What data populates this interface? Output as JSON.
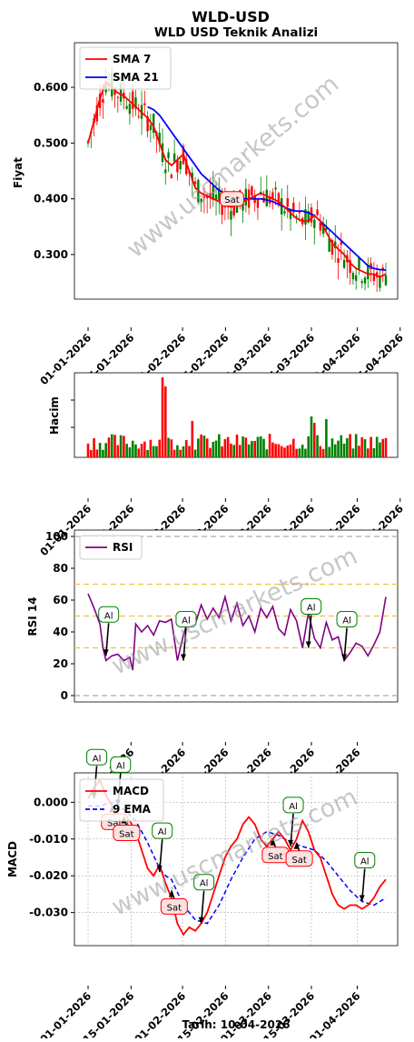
{
  "header": {
    "title": "WLD-USD",
    "subtitle": "WLD USD Teknik Analizi"
  },
  "footer": {
    "date_label": "Tarih: 10-04-2026"
  },
  "watermark": "www.uscmarkets.com",
  "colors": {
    "up": "#008000",
    "down": "#ff0000",
    "sma7": "#ff0000",
    "sma21": "#0000ff",
    "rsi": "#800080",
    "macd": "#ff0000",
    "signal": "#0000ff",
    "buy": "#008000",
    "sell": "#ff0000"
  },
  "x_dates": [
    "01-01-2026",
    "15-01-2026",
    "01-02-2026",
    "15-02-2026",
    "01-03-2026",
    "15-03-2026",
    "01-04-2026",
    "15-04-2026"
  ],
  "chart_data": [
    {
      "type": "line",
      "panel": "price",
      "ylabel": "Fiyat",
      "ylim": [
        0.22,
        0.68
      ],
      "yticks": [
        "0.300",
        "0.400",
        "0.500",
        "0.600"
      ],
      "ytick_values": [
        0.3,
        0.4,
        0.5,
        0.6
      ],
      "legend_position": "top-left",
      "series": [
        {
          "name": "SMA 7",
          "points": [
            [
              0,
              0.5
            ],
            [
              2,
              0.54
            ],
            [
              4,
              0.58
            ],
            [
              6,
              0.61
            ],
            [
              8,
              0.6
            ],
            [
              10,
              0.59
            ],
            [
              12,
              0.585
            ],
            [
              14,
              0.575
            ],
            [
              16,
              0.565
            ],
            [
              18,
              0.555
            ],
            [
              20,
              0.545
            ],
            [
              22,
              0.53
            ],
            [
              24,
              0.5
            ],
            [
              26,
              0.47
            ],
            [
              28,
              0.46
            ],
            [
              30,
              0.47
            ],
            [
              32,
              0.48
            ],
            [
              34,
              0.45
            ],
            [
              36,
              0.42
            ],
            [
              38,
              0.41
            ],
            [
              40,
              0.405
            ],
            [
              42,
              0.4
            ],
            [
              44,
              0.395
            ],
            [
              46,
              0.39
            ],
            [
              48,
              0.385
            ],
            [
              50,
              0.39
            ],
            [
              52,
              0.395
            ],
            [
              54,
              0.4
            ],
            [
              56,
              0.405
            ],
            [
              58,
              0.41
            ],
            [
              60,
              0.405
            ],
            [
              62,
              0.4
            ],
            [
              64,
              0.395
            ],
            [
              66,
              0.385
            ],
            [
              68,
              0.375
            ],
            [
              70,
              0.365
            ],
            [
              72,
              0.36
            ],
            [
              74,
              0.36
            ],
            [
              76,
              0.37
            ],
            [
              78,
              0.36
            ],
            [
              80,
              0.34
            ],
            [
              82,
              0.32
            ],
            [
              84,
              0.31
            ],
            [
              86,
              0.3
            ],
            [
              88,
              0.285
            ],
            [
              90,
              0.275
            ],
            [
              92,
              0.27
            ],
            [
              94,
              0.265
            ],
            [
              96,
              0.265
            ],
            [
              98,
              0.26
            ],
            [
              100,
              0.265
            ]
          ]
        },
        {
          "name": "SMA 21",
          "points": [
            [
              20,
              0.565
            ],
            [
              22,
              0.56
            ],
            [
              24,
              0.55
            ],
            [
              26,
              0.535
            ],
            [
              28,
              0.52
            ],
            [
              30,
              0.505
            ],
            [
              32,
              0.49
            ],
            [
              34,
              0.475
            ],
            [
              36,
              0.46
            ],
            [
              38,
              0.445
            ],
            [
              40,
              0.435
            ],
            [
              42,
              0.425
            ],
            [
              44,
              0.415
            ],
            [
              46,
              0.41
            ],
            [
              48,
              0.405
            ],
            [
              50,
              0.4
            ],
            [
              52,
              0.4
            ],
            [
              54,
              0.4
            ],
            [
              56,
              0.4
            ],
            [
              58,
              0.4
            ],
            [
              60,
              0.398
            ],
            [
              62,
              0.395
            ],
            [
              64,
              0.39
            ],
            [
              66,
              0.385
            ],
            [
              68,
              0.38
            ],
            [
              70,
              0.378
            ],
            [
              72,
              0.378
            ],
            [
              74,
              0.375
            ],
            [
              76,
              0.37
            ],
            [
              78,
              0.36
            ],
            [
              80,
              0.35
            ],
            [
              82,
              0.34
            ],
            [
              84,
              0.33
            ],
            [
              86,
              0.32
            ],
            [
              88,
              0.31
            ],
            [
              90,
              0.3
            ],
            [
              92,
              0.29
            ],
            [
              94,
              0.28
            ],
            [
              96,
              0.275
            ],
            [
              98,
              0.273
            ],
            [
              100,
              0.272
            ]
          ]
        }
      ],
      "annotations": [
        {
          "label": "Sat",
          "x": 48,
          "y": 0.39
        }
      ]
    },
    {
      "type": "bar",
      "panel": "volume",
      "ylabel": "Hacim"
    },
    {
      "type": "line",
      "panel": "rsi",
      "ylabel": "RSI 14",
      "ylim": [
        -4,
        104
      ],
      "yticks": [
        "0",
        "20",
        "40",
        "60",
        "80",
        "100"
      ],
      "ytick_values": [
        0,
        20,
        40,
        60,
        80,
        100
      ],
      "legend_position": "top-left",
      "series": [
        {
          "name": "RSI",
          "points": [
            [
              0,
              64
            ],
            [
              2,
              55
            ],
            [
              4,
              45
            ],
            [
              5,
              30
            ],
            [
              6,
              22
            ],
            [
              8,
              25
            ],
            [
              10,
              26
            ],
            [
              12,
              22
            ],
            [
              14,
              24
            ],
            [
              15,
              16
            ],
            [
              16,
              45
            ],
            [
              18,
              40
            ],
            [
              20,
              44
            ],
            [
              22,
              38
            ],
            [
              24,
              47
            ],
            [
              26,
              46
            ],
            [
              28,
              48
            ],
            [
              30,
              22
            ],
            [
              32,
              38
            ],
            [
              34,
              50
            ],
            [
              36,
              45
            ],
            [
              38,
              57
            ],
            [
              40,
              48
            ],
            [
              42,
              55
            ],
            [
              44,
              49
            ],
            [
              46,
              62
            ],
            [
              48,
              47
            ],
            [
              50,
              58
            ],
            [
              52,
              44
            ],
            [
              54,
              50
            ],
            [
              56,
              40
            ],
            [
              58,
              55
            ],
            [
              60,
              49
            ],
            [
              62,
              56
            ],
            [
              64,
              42
            ],
            [
              66,
              38
            ],
            [
              68,
              54
            ],
            [
              70,
              47
            ],
            [
              72,
              30
            ],
            [
              74,
              52
            ],
            [
              76,
              36
            ],
            [
              78,
              30
            ],
            [
              80,
              46
            ],
            [
              82,
              35
            ],
            [
              84,
              37
            ],
            [
              86,
              22
            ],
            [
              88,
              27
            ],
            [
              90,
              33
            ],
            [
              92,
              31
            ],
            [
              94,
              25
            ],
            [
              96,
              32
            ],
            [
              98,
              40
            ],
            [
              100,
              62
            ]
          ]
        }
      ],
      "hlines": [
        {
          "y": 70,
          "style": "dashed-orange"
        },
        {
          "y": 50,
          "style": "dashed-orange"
        },
        {
          "y": 30,
          "style": "dashed-orange"
        },
        {
          "y": 0,
          "style": "dashed-gray"
        },
        {
          "y": 100,
          "style": "dashed-gray"
        }
      ],
      "annotations": [
        {
          "label": "Al",
          "x": 6,
          "y": 25
        },
        {
          "label": "Al",
          "x": 32,
          "y": 22
        },
        {
          "label": "Al",
          "x": 74,
          "y": 30
        },
        {
          "label": "Al",
          "x": 86,
          "y": 22
        }
      ],
      "xtick_labels": [
        "15-01-2026",
        "01-02-2026",
        "15-02-2026",
        "01-03-2026",
        "15-03-2026",
        "01-04-2026"
      ]
    },
    {
      "type": "line",
      "panel": "macd",
      "ylabel": "MACD",
      "ylim": [
        -0.039,
        0.008
      ],
      "yticks": [
        "0.000",
        "-0.010",
        "-0.020",
        "-0.030"
      ],
      "ytick_values": [
        0,
        -0.01,
        -0.02,
        -0.03
      ],
      "legend_position": "top-left",
      "series": [
        {
          "name": "MACD",
          "points": [
            [
              0,
              0.001
            ],
            [
              2,
              0.004
            ],
            [
              4,
              0.006
            ],
            [
              6,
              0.002
            ],
            [
              8,
              -0.001
            ],
            [
              10,
              -0.003
            ],
            [
              12,
              -0.004
            ],
            [
              14,
              -0.005
            ],
            [
              16,
              -0.008
            ],
            [
              18,
              -0.013
            ],
            [
              20,
              -0.018
            ],
            [
              22,
              -0.02
            ],
            [
              24,
              -0.017
            ],
            [
              26,
              -0.022
            ],
            [
              28,
              -0.026
            ],
            [
              30,
              -0.033
            ],
            [
              32,
              -0.036
            ],
            [
              34,
              -0.034
            ],
            [
              36,
              -0.035
            ],
            [
              38,
              -0.033
            ],
            [
              40,
              -0.03
            ],
            [
              42,
              -0.025
            ],
            [
              44,
              -0.02
            ],
            [
              46,
              -0.015
            ],
            [
              48,
              -0.012
            ],
            [
              50,
              -0.01
            ],
            [
              52,
              -0.006
            ],
            [
              54,
              -0.004
            ],
            [
              56,
              -0.006
            ],
            [
              58,
              -0.01
            ],
            [
              60,
              -0.012
            ],
            [
              62,
              -0.01
            ],
            [
              64,
              -0.008
            ],
            [
              66,
              -0.01
            ],
            [
              68,
              -0.013
            ],
            [
              70,
              -0.01
            ],
            [
              72,
              -0.005
            ],
            [
              74,
              -0.008
            ],
            [
              76,
              -0.013
            ],
            [
              78,
              -0.015
            ],
            [
              80,
              -0.02
            ],
            [
              82,
              -0.025
            ],
            [
              84,
              -0.028
            ],
            [
              86,
              -0.029
            ],
            [
              88,
              -0.028
            ],
            [
              90,
              -0.028
            ],
            [
              92,
              -0.029
            ],
            [
              94,
              -0.028
            ],
            [
              96,
              -0.026
            ],
            [
              98,
              -0.023
            ],
            [
              100,
              -0.021
            ]
          ]
        },
        {
          "name": "9 EMA",
          "points": [
            [
              0,
              -0.001
            ],
            [
              4,
              -0.001
            ],
            [
              8,
              0.0
            ],
            [
              12,
              -0.002
            ],
            [
              16,
              -0.005
            ],
            [
              20,
              -0.011
            ],
            [
              24,
              -0.018
            ],
            [
              26,
              -0.02
            ],
            [
              28,
              -0.021
            ],
            [
              32,
              -0.028
            ],
            [
              36,
              -0.032
            ],
            [
              40,
              -0.033
            ],
            [
              44,
              -0.028
            ],
            [
              48,
              -0.021
            ],
            [
              52,
              -0.015
            ],
            [
              56,
              -0.01
            ],
            [
              60,
              -0.008
            ],
            [
              64,
              -0.009
            ],
            [
              68,
              -0.011
            ],
            [
              72,
              -0.012
            ],
            [
              76,
              -0.013
            ],
            [
              80,
              -0.016
            ],
            [
              84,
              -0.02
            ],
            [
              88,
              -0.024
            ],
            [
              92,
              -0.027
            ],
            [
              96,
              -0.028
            ],
            [
              100,
              -0.026
            ]
          ]
        }
      ],
      "annotations": [
        {
          "label": "Al",
          "x": 2,
          "y": 0.001
        },
        {
          "label": "Sat",
          "x": 8,
          "y": -0.001
        },
        {
          "label": "Al",
          "x": 10,
          "y": -0.001
        },
        {
          "label": "Sat",
          "x": 12,
          "y": -0.004
        },
        {
          "label": "Al",
          "x": 24,
          "y": -0.019
        },
        {
          "label": "Sat",
          "x": 28,
          "y": -0.024
        },
        {
          "label": "Al",
          "x": 38,
          "y": -0.033
        },
        {
          "label": "Sat",
          "x": 62,
          "y": -0.01
        },
        {
          "label": "Al",
          "x": 68,
          "y": -0.012
        },
        {
          "label": "Sat",
          "x": 70,
          "y": -0.011
        },
        {
          "label": "Al",
          "x": 92,
          "y": -0.027
        }
      ],
      "xtick_labels": [
        "01-01-2026",
        "15-01-2026",
        "01-02-2026",
        "15-02-2026",
        "01-03-2026",
        "15-03-2026",
        "01-04-2026"
      ]
    }
  ]
}
